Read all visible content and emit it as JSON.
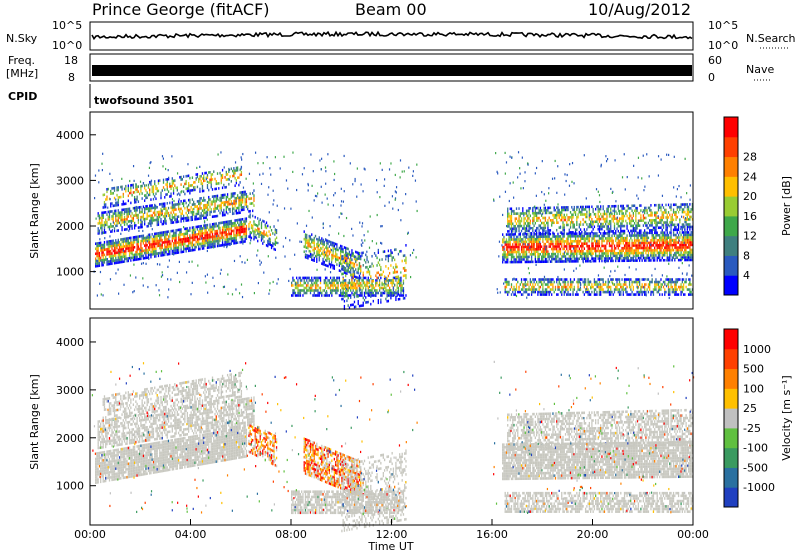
{
  "header": {
    "station": "Prince George (fitACF)",
    "beam": "Beam 00",
    "date": "10/Aug/2012"
  },
  "nsky_panel": {
    "label": "N.Sky",
    "y_tick_top": "10^5",
    "y_tick_bottom": "10^0",
    "right_label": "N.Search",
    "right_tick_top": "10^5",
    "right_tick_bottom": "10^0"
  },
  "freq_panel": {
    "label_line1": "Freq.",
    "label_line2": "[MHz]",
    "y_tick_top": "18",
    "y_tick_bottom": "8",
    "right_label": "Nave",
    "right_tick_top": "60",
    "right_tick_bottom": "0"
  },
  "cpid": {
    "label": "CPID",
    "mode": "twofsound 3501"
  },
  "colors": {
    "background": "#ffffff",
    "ground_scatter": "#c8c8c0"
  },
  "chart_data": [
    {
      "type": "heatmap",
      "title": "",
      "ylabel": "Slant Range [km]",
      "xlabel": "",
      "ylim": [
        180,
        4500
      ],
      "xlim": [
        0,
        24
      ],
      "y_ticks": [
        "1000",
        "2000",
        "3000",
        "4000"
      ],
      "colorbar": {
        "label": "Power [dB]",
        "ticks": [
          "4",
          "8",
          "12",
          "16",
          "20",
          "24",
          "28"
        ],
        "colors": [
          "#0000ff",
          "#2a5abf",
          "#3f7f7f",
          "#3fa84a",
          "#99cc33",
          "#ffbf00",
          "#ff8000",
          "#ff4000",
          "#ff0000"
        ]
      }
    },
    {
      "type": "heatmap",
      "title": "",
      "ylabel": "Slant Range [km]",
      "xlabel": "Time UT",
      "ylim": [
        180,
        4500
      ],
      "xlim": [
        0,
        24
      ],
      "y_ticks": [
        "1000",
        "2000",
        "3000",
        "4000"
      ],
      "x_ticks": [
        "00:00",
        "04:00",
        "08:00",
        "12:00",
        "16:00",
        "20:00",
        "00:00"
      ],
      "colorbar": {
        "label": "Velocity [m s⁻¹]",
        "ticks": [
          "1000",
          "500",
          "100",
          "25",
          "-25",
          "-100",
          "-500",
          "-1000"
        ],
        "colors": [
          "#2040c0",
          "#2a70a0",
          "#3a9a60",
          "#60c040",
          "#c0c0c0",
          "#ffc000",
          "#ff8000",
          "#ff4000",
          "#ff0000"
        ]
      }
    }
  ]
}
